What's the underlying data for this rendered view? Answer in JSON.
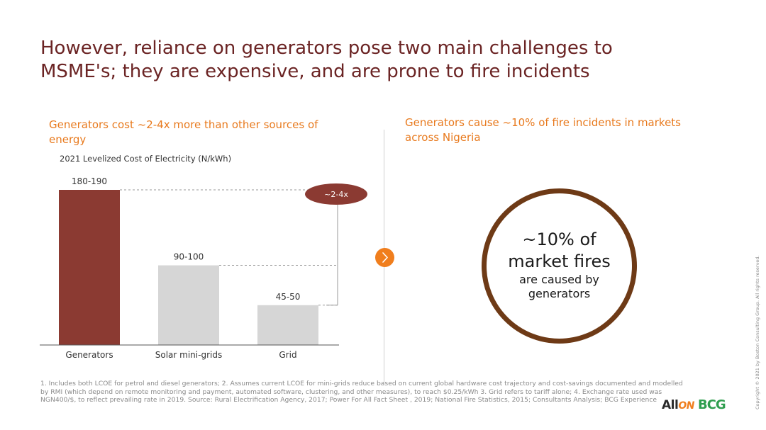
{
  "title": {
    "line1": "However, reliance on generators pose two main challenges to",
    "line2": "MSME's; they are expensive, and are prone to fire incidents"
  },
  "left_panel": {
    "heading": "Generators cost ~2-4x more than other sources of energy"
  },
  "right_panel": {
    "heading": "Generators cause ~10% of fire incidents in markets across Nigeria",
    "ring": {
      "line1": "~10% of",
      "line2": "market fires",
      "line3": "are caused by",
      "line4": "generators"
    }
  },
  "chart_data": {
    "type": "bar",
    "title": "2021 Levelized Cost of Electricity (N/kWh)",
    "categories": [
      "Generators",
      "Solar mini-grids",
      "Grid"
    ],
    "values": [
      185,
      95,
      47.5
    ],
    "data_labels": [
      "180-190",
      "90-100",
      "45-50"
    ],
    "ylim": [
      0,
      190
    ],
    "annotation": "~2-4x",
    "colors": [
      "#8b3a32",
      "#d6d6d6",
      "#d6d6d6"
    ],
    "grid": false,
    "legend": "none"
  },
  "footnote": "1. Includes both LCOE for petrol and diesel generators; 2. Assumes current LCOE for mini-grids reduce based on current global hardware cost trajectory and cost-savings documented and modelled by RMI (which depend on remote monitoring and payment, automated software, clustering, and other measures), to reach $0.25/kWh 3. Grid refers to tariff alone; 4. Exchange rate used was NGN400/$, to reflect prevailing rate in 2019. Source: Rural Electrification Agency, 2017; Power For All Fact Sheet , 2019; National Fire Statistics, 2015; Consultants Analysis; BCG Experience",
  "copyright": "Copyright © 2021 by Boston Consulting Group. All rights reserved.",
  "logos": {
    "allon_prefix": "All",
    "allon_suffix": "ON",
    "bcg": "BCG"
  },
  "icons": {
    "arrow": "chevron-right-icon"
  },
  "colors": {
    "title": "#6b2424",
    "accent_orange": "#f07e1d",
    "bar_highlight": "#8b3a32",
    "bar_neutral": "#d6d6d6",
    "ring": "#6e3a16"
  }
}
